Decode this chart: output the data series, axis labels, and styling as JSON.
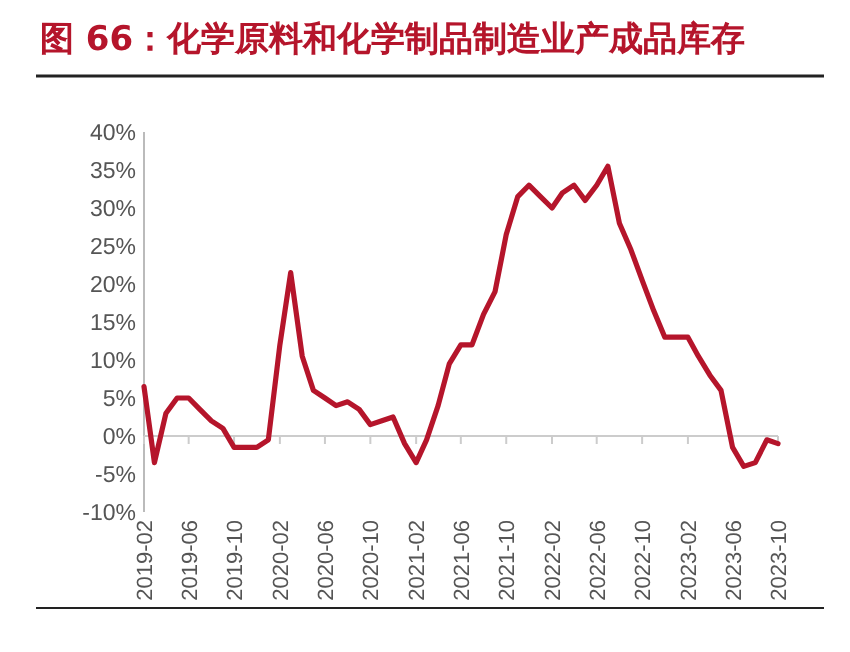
{
  "chart_data": {
    "type": "line",
    "title": "图 66：化学原料和化学制品制造业产成品库存",
    "x": [
      "2019-02",
      "2019-03",
      "2019-04",
      "2019-05",
      "2019-06",
      "2019-07",
      "2019-08",
      "2019-09",
      "2019-10",
      "2019-11",
      "2019-12",
      "2020-01",
      "2020-02",
      "2020-03",
      "2020-04",
      "2020-05",
      "2020-06",
      "2020-07",
      "2020-08",
      "2020-09",
      "2020-10",
      "2020-11",
      "2020-12",
      "2021-01",
      "2021-02",
      "2021-03",
      "2021-04",
      "2021-05",
      "2021-06",
      "2021-07",
      "2021-08",
      "2021-09",
      "2021-10",
      "2021-11",
      "2021-12",
      "2022-01",
      "2022-02",
      "2022-03",
      "2022-04",
      "2022-05",
      "2022-06",
      "2022-07",
      "2022-08",
      "2022-09",
      "2022-10",
      "2022-11",
      "2022-12",
      "2023-01",
      "2023-02",
      "2023-03",
      "2023-04",
      "2023-05",
      "2023-06",
      "2023-07",
      "2023-08",
      "2023-09",
      "2023-10"
    ],
    "series": [
      {
        "color": "#b5152b",
        "values": [
          6.5,
          -3.5,
          3,
          5,
          5,
          3.5,
          2,
          1,
          -1.5,
          -1.5,
          -1.5,
          -0.5,
          12,
          21.5,
          10.5,
          6,
          5,
          4,
          4.5,
          3.5,
          1.5,
          2,
          2.5,
          -1,
          -3.5,
          -0.5,
          4,
          9.5,
          12,
          12,
          16,
          19,
          26.5,
          31.5,
          33,
          31.5,
          30,
          32,
          33,
          31,
          33,
          35.5,
          28,
          24.5,
          20.5,
          16.5,
          13,
          13,
          13,
          10.5,
          8,
          6,
          -1.5,
          -4,
          -3.5,
          -0.5,
          -1
        ]
      }
    ],
    "xlim": [
      "2019-02",
      "2023-10"
    ],
    "xticks": [
      "2019-02",
      "2019-06",
      "2019-10",
      "2020-02",
      "2020-06",
      "2020-10",
      "2021-02",
      "2021-06",
      "2021-10",
      "2022-02",
      "2022-06",
      "2022-10",
      "2023-02",
      "2023-06",
      "2023-10"
    ],
    "ylim": [
      -10,
      40
    ],
    "yticks": [
      {
        "value": -10,
        "label": "-10%"
      },
      {
        "value": -5,
        "label": "-5%"
      },
      {
        "value": 0,
        "label": "0%"
      },
      {
        "value": 5,
        "label": "5%"
      },
      {
        "value": 10,
        "label": "10%"
      },
      {
        "value": 15,
        "label": "15%"
      },
      {
        "value": 20,
        "label": "20%"
      },
      {
        "value": 25,
        "label": "25%"
      },
      {
        "value": 30,
        "label": "30%"
      },
      {
        "value": 35,
        "label": "35%"
      },
      {
        "value": 40,
        "label": "40%"
      }
    ],
    "marker": "none",
    "line_style": "solid"
  }
}
